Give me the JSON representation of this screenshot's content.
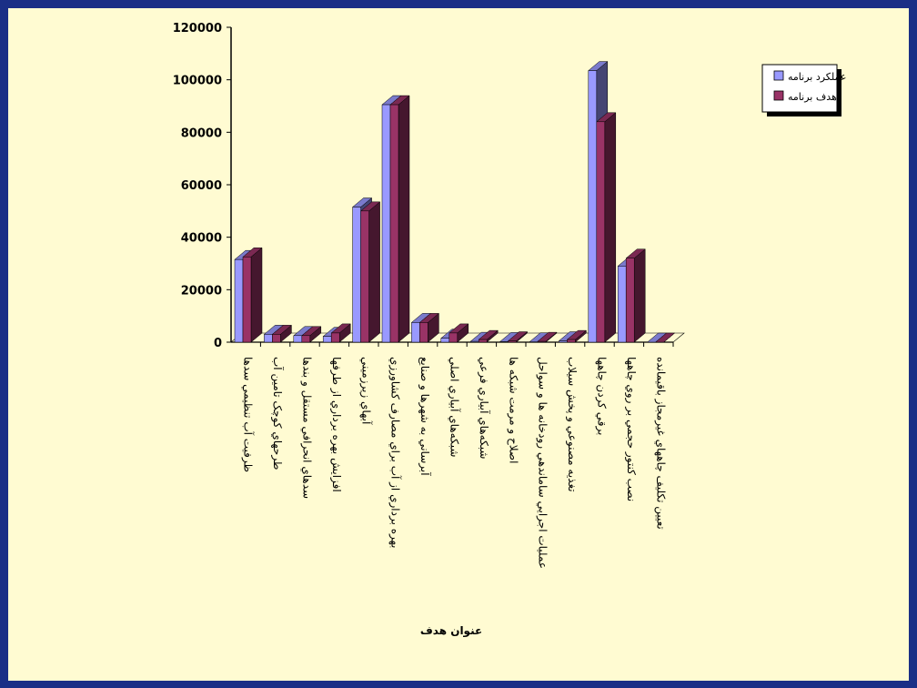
{
  "chart_data": {
    "type": "bar",
    "title": "",
    "xlabel": "عنوان هدف",
    "ylabel": "",
    "ylim": [
      0,
      120000
    ],
    "yticks": [
      0,
      20000,
      40000,
      60000,
      80000,
      100000,
      120000
    ],
    "grid": false,
    "legend_position": "top-right",
    "categories": [
      "ظرفيت آب تنظيمي سدها",
      "طرحهاي کوچک تامين آب",
      "سدهاي انحرافي مستقل و بندها",
      "افزايش بهره برداري از طرفها",
      "آبهاي زيرزميني",
      "بهره برداري از آب براي مصارف کشاورزي",
      "آبرساني به شهرها و صنايع",
      "شبکه‌هاي آبياري اصلي",
      "شبکه‌هاي آبياري فرعي",
      "اصلاح و مرمت شبکه ها",
      "عمليات اجرايي ساماندهي رودخانه ها و سواحل",
      "تغذيه مصنوعي و پخش سيلاب",
      "برقي کردن چاهها",
      "نصب کنتور حجمي بر روي چاهها",
      "تعيين تکليف چاههاي غيرمجاز باقيمانده"
    ],
    "series": [
      {
        "name": "عملکرد برنامه",
        "color": "#9999ff",
        "values": [
          31500,
          3000,
          2500,
          2200,
          51500,
          90500,
          7500,
          1500,
          300,
          200,
          100,
          500,
          103500,
          29000,
          0
        ]
      },
      {
        "name": "هدف برنامه",
        "color": "#993366",
        "values": [
          32500,
          3000,
          2500,
          3500,
          50000,
          90500,
          7500,
          3500,
          1000,
          500,
          300,
          1000,
          84000,
          32000,
          0
        ]
      }
    ]
  }
}
